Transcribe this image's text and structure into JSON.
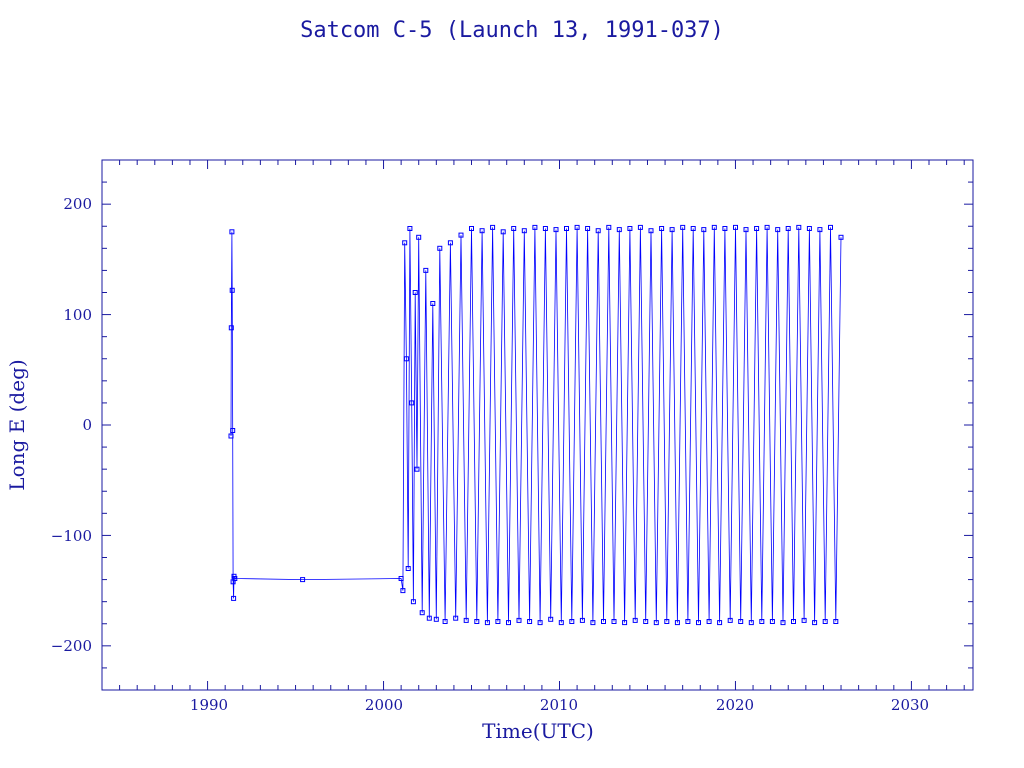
{
  "chart_data": {
    "type": "line",
    "title": "Satcom C-5 (Launch 13, 1991-037)",
    "xlabel": "Time(UTC)",
    "ylabel": "Long E (deg)",
    "xlim": [
      1984,
      2033.5
    ],
    "ylim": [
      -240,
      240
    ],
    "x_ticks": [
      "1990",
      "2000",
      "2010",
      "2020",
      "2030"
    ],
    "y_ticks": [
      "200",
      "100",
      "0",
      "−100",
      "−200"
    ],
    "grid": false,
    "legend": "none",
    "color": "#0000ff",
    "axis_color": "#1a1aa0",
    "series": [
      {
        "x": [
          1991.33,
          1991.35,
          1991.38,
          1991.4,
          1991.43,
          1991.45,
          1991.48,
          1991.5,
          1991.55,
          1995.4,
          2001.0,
          2001.1,
          2001.2,
          2001.3,
          2001.4,
          2001.5,
          2001.6,
          2001.7,
          2001.8,
          2001.9,
          2002.0,
          2002.2,
          2002.4,
          2002.6,
          2002.8,
          2003.0,
          2003.2,
          2003.5,
          2003.8,
          2004.1,
          2004.4,
          2004.7,
          2005.0,
          2005.3,
          2005.6,
          2005.9,
          2006.2,
          2006.5,
          2006.8,
          2007.1,
          2007.4,
          2007.7,
          2008.0,
          2008.3,
          2008.6,
          2008.9,
          2009.2,
          2009.5,
          2009.8,
          2010.1,
          2010.4,
          2010.7,
          2011.0,
          2011.3,
          2011.6,
          2011.9,
          2012.2,
          2012.5,
          2012.8,
          2013.1,
          2013.4,
          2013.7,
          2014.0,
          2014.3,
          2014.6,
          2014.9,
          2015.2,
          2015.5,
          2015.8,
          2016.1,
          2016.4,
          2016.7,
          2017.0,
          2017.3,
          2017.6,
          2017.9,
          2018.2,
          2018.5,
          2018.8,
          2019.1,
          2019.4,
          2019.7,
          2020.0,
          2020.3,
          2020.6,
          2020.9,
          2021.2,
          2021.5,
          2021.8,
          2022.1,
          2022.4,
          2022.7,
          2023.0,
          2023.3,
          2023.6,
          2023.9,
          2024.2,
          2024.5,
          2024.8,
          2025.1,
          2025.4,
          2025.7,
          2026.0
        ],
        "y": [
          -10,
          88,
          175,
          122,
          -5,
          -142,
          -157,
          -137,
          -139,
          -140,
          -139,
          -150,
          165,
          60,
          -130,
          178,
          20,
          -160,
          120,
          -40,
          170,
          -170,
          140,
          -175,
          110,
          -176,
          160,
          -178,
          165,
          -175,
          172,
          -177,
          178,
          -178,
          176,
          -179,
          179,
          -178,
          175,
          -179,
          178,
          -177,
          176,
          -178,
          179,
          -179,
          178,
          -176,
          177,
          -179,
          178,
          -178,
          179,
          -177,
          178,
          -179,
          176,
          -178,
          179,
          -178,
          177,
          -179,
          178,
          -177,
          179,
          -178,
          176,
          -179,
          178,
          -178,
          177,
          -179,
          179,
          -178,
          178,
          -179,
          177,
          -178,
          179,
          -179,
          178,
          -177,
          179,
          -178,
          177,
          -179,
          178,
          -178,
          179,
          -178,
          177,
          -179,
          178,
          -178,
          179,
          -177,
          178,
          -179,
          177,
          -178,
          179,
          -178,
          170
        ]
      }
    ]
  }
}
